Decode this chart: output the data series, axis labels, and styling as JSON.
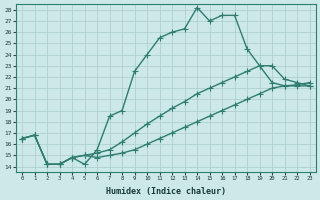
{
  "xlabel": "Humidex (Indice chaleur)",
  "background_color": "#cce8e8",
  "grid_color": "#aacccc",
  "line_color": "#2e7d6e",
  "xlim": [
    -0.5,
    23.5
  ],
  "ylim": [
    13.5,
    28.5
  ],
  "xticks": [
    0,
    1,
    2,
    3,
    4,
    5,
    6,
    7,
    8,
    9,
    10,
    11,
    12,
    13,
    14,
    15,
    16,
    17,
    18,
    19,
    20,
    21,
    22,
    23
  ],
  "yticks": [
    14,
    15,
    16,
    17,
    18,
    19,
    20,
    21,
    22,
    23,
    24,
    25,
    26,
    27,
    28
  ],
  "line1_x": [
    0,
    1,
    2,
    3,
    4,
    5,
    6,
    7,
    8,
    9,
    10,
    11,
    12,
    13,
    14,
    15,
    16,
    17,
    18,
    19,
    20,
    21,
    22,
    23
  ],
  "line1_y": [
    16.5,
    16.8,
    14.2,
    14.2,
    14.8,
    14.2,
    15.5,
    18.5,
    19.0,
    22.5,
    24.0,
    25.5,
    26.0,
    26.3,
    28.2,
    27.0,
    27.5,
    27.5,
    24.5,
    23.0,
    21.5,
    21.2,
    21.2,
    21.2
  ],
  "line2_x": [
    0,
    1,
    2,
    3,
    4,
    5,
    6,
    7,
    8,
    9,
    10,
    11,
    12,
    13,
    14,
    15,
    16,
    17,
    18,
    19,
    20,
    21,
    22,
    23
  ],
  "line2_y": [
    16.5,
    16.8,
    14.2,
    14.2,
    14.8,
    15.0,
    15.2,
    15.5,
    16.2,
    17.0,
    17.8,
    18.5,
    19.2,
    19.8,
    20.5,
    21.0,
    21.5,
    22.0,
    22.5,
    23.0,
    23.0,
    21.8,
    21.5,
    21.2
  ],
  "line3_x": [
    0,
    1,
    2,
    3,
    4,
    5,
    6,
    7,
    8,
    9,
    10,
    11,
    12,
    13,
    14,
    15,
    16,
    17,
    18,
    19,
    20,
    21,
    22,
    23
  ],
  "line3_y": [
    16.5,
    16.8,
    14.2,
    14.2,
    14.8,
    15.0,
    14.8,
    15.0,
    15.2,
    15.5,
    16.0,
    16.5,
    17.0,
    17.5,
    18.0,
    18.5,
    19.0,
    19.5,
    20.0,
    20.5,
    21.0,
    21.2,
    21.3,
    21.5
  ],
  "marker": "+",
  "marker_size": 4,
  "line_width": 1.0
}
